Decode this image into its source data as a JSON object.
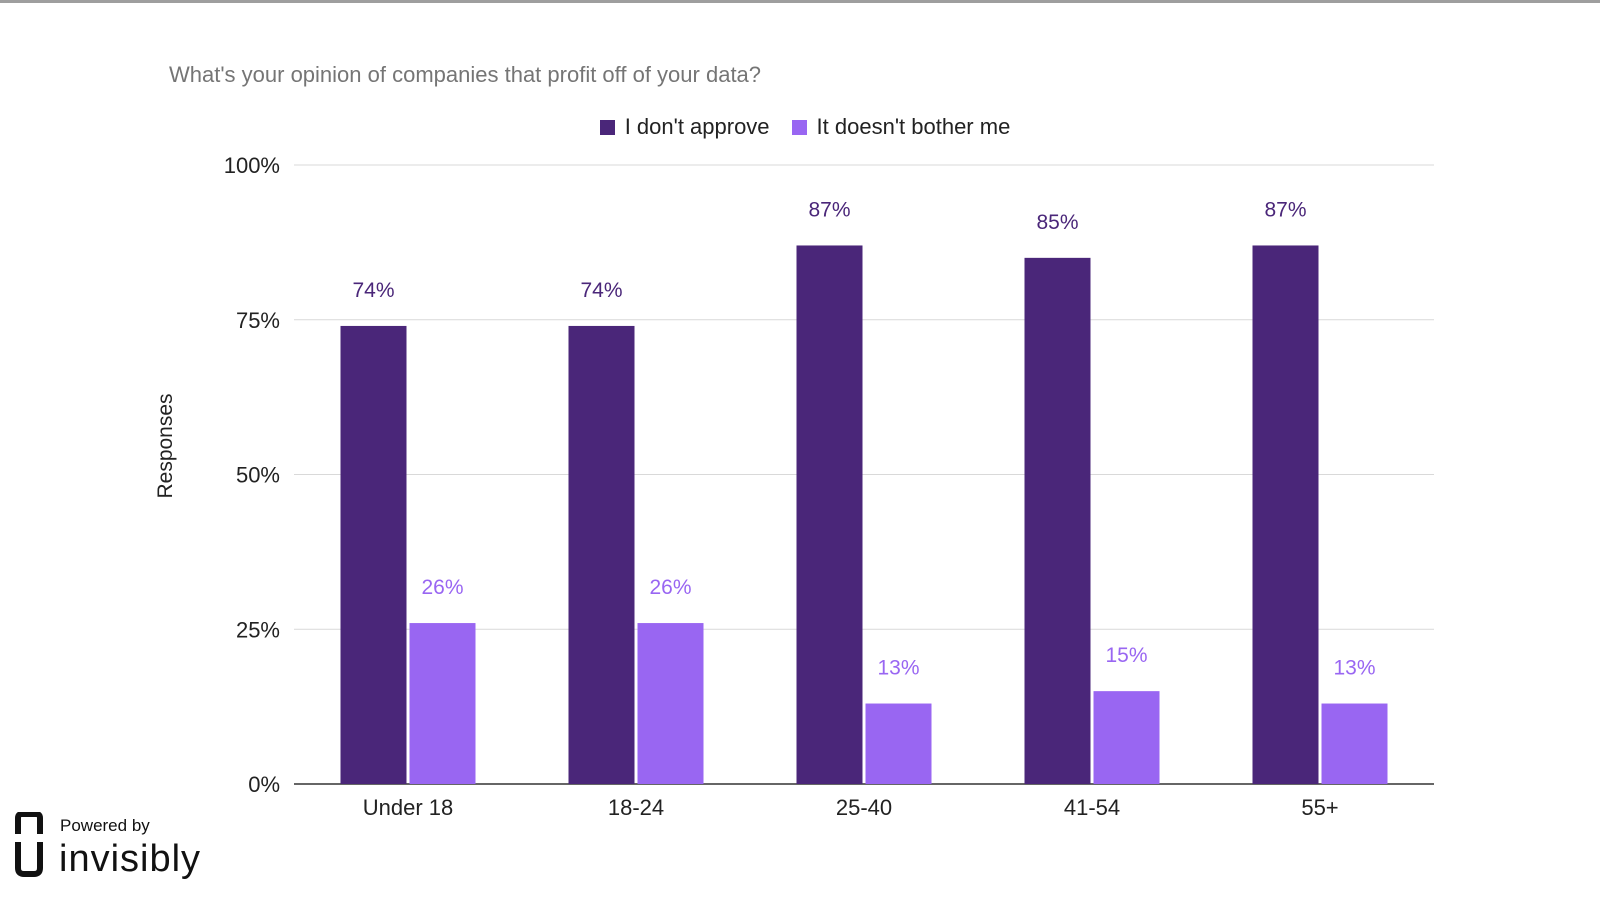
{
  "chart_data": {
    "type": "bar",
    "title": "What's your opinion of companies that profit off of your data?",
    "xlabel": "",
    "ylabel": "Responses",
    "categories": [
      "Under 18",
      "18-24",
      "25-40",
      "41-54",
      "55+"
    ],
    "series": [
      {
        "name": "I don't approve",
        "color": "#4a2679",
        "values": [
          74,
          74,
          87,
          85,
          87
        ],
        "labels": [
          "74%",
          "74%",
          "87%",
          "85%",
          "87%"
        ]
      },
      {
        "name": "It doesn't bother me",
        "color": "#9966f2",
        "values": [
          26,
          26,
          13,
          15,
          13
        ],
        "labels": [
          "26%",
          "26%",
          "13%",
          "15%",
          "13%"
        ]
      }
    ],
    "ylim": [
      0,
      100
    ],
    "yticks": [
      0,
      25,
      50,
      75,
      100
    ],
    "ytick_labels": [
      "0%",
      "25%",
      "50%",
      "75%",
      "100%"
    ],
    "grid": true,
    "legend_position": "top-center"
  },
  "branding": {
    "powered_by": "Powered by",
    "name": "invisibly",
    "icon": "invisibly-logo-icon"
  }
}
